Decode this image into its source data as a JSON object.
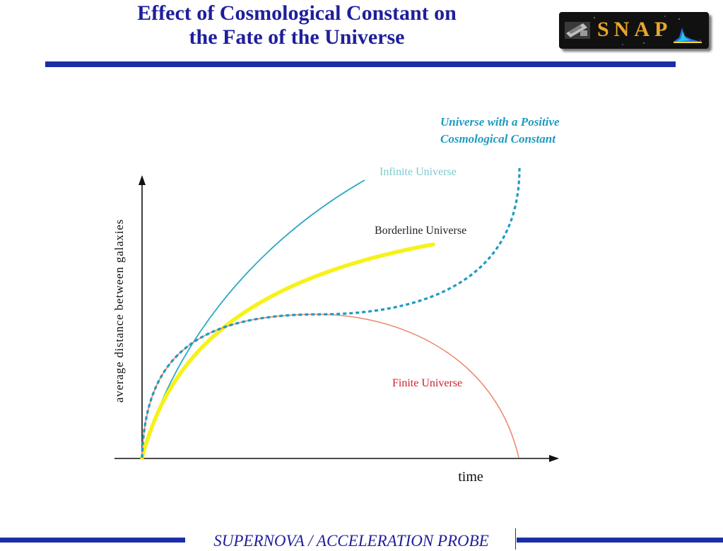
{
  "header": {
    "title_line1": "Effect of Cosmological Constant on",
    "title_line2": "the Fate of the Universe",
    "logo_text": "SNAP"
  },
  "diagram": {
    "y_axis_label": "average distance between galaxies",
    "x_axis_label": "time",
    "curves": [
      {
        "label": "Infinite Universe",
        "color": "#2aa7c2",
        "label_color": "#7ec9cf",
        "style": "solid"
      },
      {
        "label": "Borderline Universe",
        "color": "#f6f21a",
        "label_color": "#222222",
        "style": "solid-thick"
      },
      {
        "label": "Finite Universe",
        "color": "#ef8a70",
        "label_color": "#d0202a",
        "style": "solid"
      },
      {
        "label_line1": "Universe with a Positive",
        "label_line2": "Cosmological Constant",
        "color": "#1f9ac0",
        "label_color": "#1f9ac0",
        "style": "dashed"
      }
    ]
  },
  "footer": {
    "text": "SUPERNOVA / ACCELERATION PROBE"
  },
  "colors": {
    "title": "#1e1e9c",
    "rule": "#1b2ea8",
    "logo_text": "#e8a62a"
  }
}
